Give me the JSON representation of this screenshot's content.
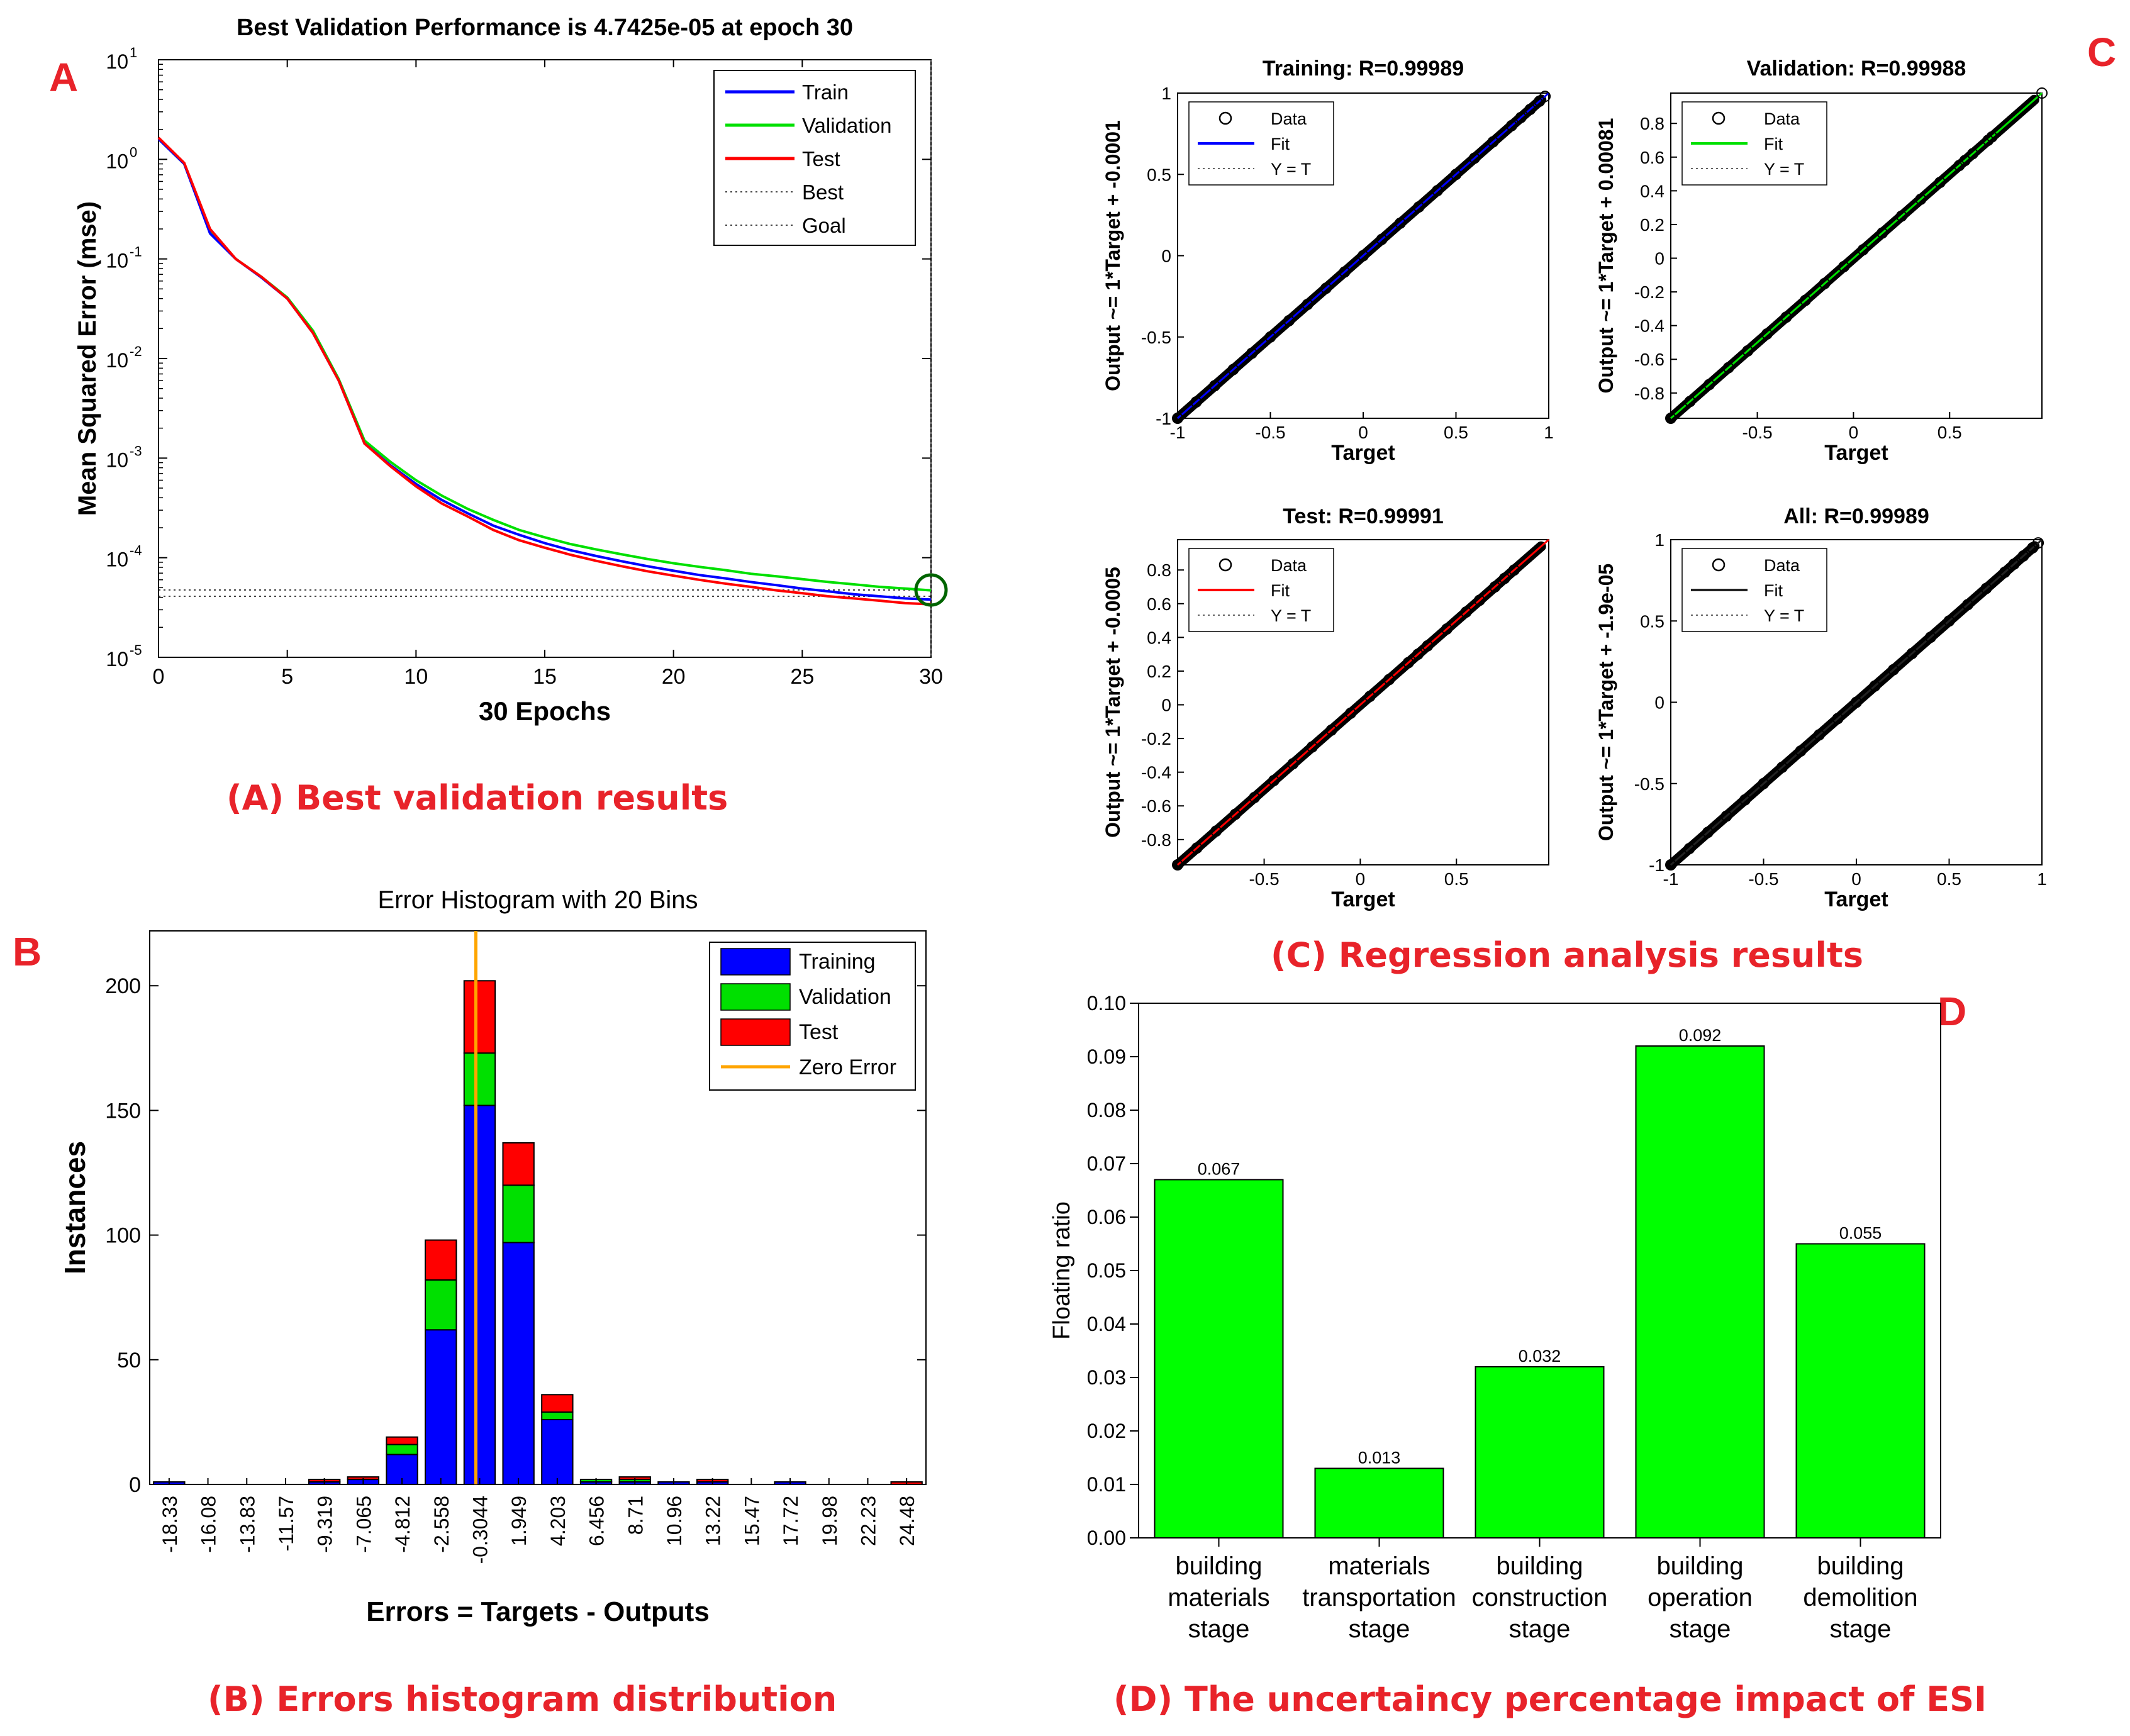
{
  "colors": {
    "train": "#0000ff",
    "validation": "#00e000",
    "test": "#ff0000",
    "zero_error": "#ffa500",
    "bar_green": "#00ff00",
    "caption_red": "#e8232a"
  },
  "panel_letters": {
    "a": "A",
    "b": "B",
    "c": "C",
    "d": "D"
  },
  "captions": {
    "a": "(A)  Best validation results",
    "b": "(B)  Errors histogram distribution",
    "c": "(C)  Regression analysis results",
    "d": "(D)  The uncertaincy percentage impact of ESI"
  },
  "chart_data": [
    {
      "id": "A",
      "type": "line",
      "title": "Best Validation Performance is 4.7425e-05 at epoch 30",
      "xlabel": "30 Epochs",
      "ylabel": "Mean Squared Error  (mse)",
      "yscale": "log",
      "xlim": [
        0,
        30
      ],
      "ylim_exp": [
        -5,
        1
      ],
      "xticks": [
        0,
        5,
        10,
        15,
        20,
        25,
        30
      ],
      "yticks_exp": [
        -5,
        -4,
        -3,
        -2,
        -1,
        0,
        1
      ],
      "x": [
        0,
        1,
        2,
        3,
        4,
        5,
        6,
        7,
        8,
        9,
        10,
        11,
        12,
        13,
        14,
        15,
        16,
        17,
        18,
        19,
        20,
        21,
        22,
        23,
        24,
        25,
        26,
        27,
        28,
        29,
        30
      ],
      "series": [
        {
          "name": "Train",
          "values": [
            1.6,
            0.9,
            0.18,
            0.1,
            0.065,
            0.04,
            0.018,
            0.006,
            0.0014,
            0.00085,
            0.00055,
            0.00038,
            0.00028,
            0.00021,
            0.00017,
            0.00014,
            0.000119,
            0.000104,
            9.2e-05,
            8.2e-05,
            7.4e-05,
            6.7e-05,
            6.2e-05,
            5.7e-05,
            5.3e-05,
            4.9e-05,
            4.6e-05,
            4.3e-05,
            4.1e-05,
            3.9e-05,
            3.8e-05
          ]
        },
        {
          "name": "Validation",
          "values": [
            1.6,
            0.9,
            0.19,
            0.1,
            0.066,
            0.041,
            0.019,
            0.0062,
            0.0015,
            0.00092,
            0.0006,
            0.00042,
            0.00031,
            0.00024,
            0.00019,
            0.00016,
            0.000137,
            0.000121,
            0.000108,
            9.7e-05,
            8.8e-05,
            8.1e-05,
            7.5e-05,
            6.9e-05,
            6.5e-05,
            6.1e-05,
            5.7e-05,
            5.4e-05,
            5.1e-05,
            4.9e-05,
            4.7e-05
          ]
        },
        {
          "name": "Test",
          "values": [
            1.65,
            0.92,
            0.2,
            0.1,
            0.066,
            0.04,
            0.018,
            0.006,
            0.0014,
            0.00083,
            0.00052,
            0.00035,
            0.00026,
            0.00019,
            0.00015,
            0.000126,
            0.000107,
            9.3e-05,
            8.2e-05,
            7.3e-05,
            6.6e-05,
            6e-05,
            5.5e-05,
            5.1e-05,
            4.7e-05,
            4.4e-05,
            4.1e-05,
            3.9e-05,
            3.7e-05,
            3.5e-05,
            3.4e-05
          ]
        }
      ],
      "best_level": 4.74e-05,
      "goal_level": 4.1e-05,
      "best_epoch": 30,
      "legend": [
        "Train",
        "Validation",
        "Test",
        "Best",
        "Goal"
      ]
    },
    {
      "id": "B",
      "type": "bar",
      "stacked": true,
      "title": "Error Histogram with 20 Bins",
      "xlabel": "Errors = Targets - Outputs",
      "ylabel": "Instances",
      "ylim": [
        0,
        222
      ],
      "yticks": [
        0,
        50,
        100,
        150,
        200
      ],
      "categories": [
        "-18.33",
        "-16.08",
        "-13.83",
        "-11.57",
        "-9.319",
        "-7.065",
        "-4.812",
        "-2.558",
        "-0.3044",
        "1.949",
        "4.203",
        "6.456",
        "8.71",
        "10.96",
        "13.22",
        "15.47",
        "17.72",
        "19.98",
        "22.23",
        "24.48"
      ],
      "series": [
        {
          "name": "Training",
          "values": [
            1,
            0,
            0,
            0,
            1,
            2,
            12,
            62,
            152,
            97,
            26,
            1,
            1,
            1,
            1,
            0,
            1,
            0,
            0,
            0
          ]
        },
        {
          "name": "Validation",
          "values": [
            0,
            0,
            0,
            0,
            0,
            0,
            4,
            20,
            21,
            23,
            3,
            1,
            1,
            0,
            0,
            0,
            0,
            0,
            0,
            0
          ]
        },
        {
          "name": "Test",
          "values": [
            0,
            0,
            0,
            0,
            1,
            1,
            3,
            16,
            29,
            17,
            7,
            0,
            1,
            0,
            1,
            0,
            0,
            0,
            0,
            1
          ]
        }
      ],
      "zero_error_bin": 8,
      "legend": [
        "Training",
        "Validation",
        "Test",
        "Zero Error"
      ]
    },
    {
      "id": "C1",
      "type": "scatter",
      "title": "Training: R=0.99989",
      "xlabel": "Target",
      "ylabel": "Output ~= 1*Target + -0.0001",
      "xlim": [
        -1,
        1
      ],
      "ylim": [
        -1,
        1
      ],
      "xticks": [
        -1,
        -0.5,
        0,
        0.5,
        1
      ],
      "yticks": [
        -1,
        -0.5,
        0,
        0.5,
        1
      ],
      "fit_color": "#0000ff",
      "x": [
        -1,
        -0.9,
        -0.8,
        -0.7,
        -0.6,
        -0.5,
        -0.4,
        -0.3,
        -0.2,
        -0.1,
        0,
        0.1,
        0.2,
        0.3,
        0.4,
        0.5,
        0.6,
        0.7,
        0.8,
        0.85,
        0.9,
        0.95,
        0.98
      ],
      "y": [
        -1,
        -0.9,
        -0.8,
        -0.7,
        -0.6,
        -0.5,
        -0.4,
        -0.3,
        -0.2,
        -0.1,
        0,
        0.1,
        0.2,
        0.3,
        0.4,
        0.5,
        0.6,
        0.7,
        0.8,
        0.85,
        0.9,
        0.95,
        0.98
      ],
      "legend": [
        "Data",
        "Fit",
        "Y = T"
      ]
    },
    {
      "id": "C2",
      "type": "scatter",
      "title": "Validation: R=0.99988",
      "xlabel": "Target",
      "ylabel": "Output ~= 1*Target + 0.00081",
      "xlim": [
        -0.95,
        0.98
      ],
      "ylim": [
        -0.95,
        0.98
      ],
      "xticks": [
        -0.5,
        0,
        0.5
      ],
      "yticks": [
        -0.8,
        -0.6,
        -0.4,
        -0.2,
        0,
        0.2,
        0.4,
        0.6,
        0.8
      ],
      "fit_color": "#00e000",
      "x": [
        -0.95,
        -0.85,
        -0.75,
        -0.65,
        -0.55,
        -0.45,
        -0.35,
        -0.25,
        -0.15,
        -0.05,
        0.05,
        0.15,
        0.25,
        0.35,
        0.45,
        0.55,
        0.58,
        0.62,
        0.7,
        0.72,
        0.98
      ],
      "y": [
        -0.95,
        -0.85,
        -0.75,
        -0.65,
        -0.55,
        -0.45,
        -0.35,
        -0.25,
        -0.15,
        -0.05,
        0.05,
        0.15,
        0.25,
        0.35,
        0.45,
        0.55,
        0.58,
        0.62,
        0.7,
        0.72,
        0.98
      ],
      "legend": [
        "Data",
        "Fit",
        "Y = T"
      ]
    },
    {
      "id": "C3",
      "type": "scatter",
      "title": "Test: R=0.99991",
      "xlabel": "Target",
      "ylabel": "Output ~= 1*Target + -0.0005",
      "xlim": [
        -0.95,
        0.98
      ],
      "ylim": [
        -0.95,
        0.98
      ],
      "xticks": [
        -0.5,
        0,
        0.5
      ],
      "yticks": [
        -0.8,
        -0.6,
        -0.4,
        -0.2,
        0,
        0.2,
        0.4,
        0.6,
        0.8
      ],
      "fit_color": "#ff0000",
      "x": [
        -0.95,
        -0.85,
        -0.75,
        -0.65,
        -0.55,
        -0.45,
        -0.35,
        -0.25,
        -0.15,
        -0.05,
        0.05,
        0.15,
        0.25,
        0.3,
        0.35,
        0.45,
        0.55,
        0.62,
        0.7,
        0.75,
        0.8
      ],
      "y": [
        -0.95,
        -0.85,
        -0.75,
        -0.65,
        -0.55,
        -0.45,
        -0.35,
        -0.25,
        -0.15,
        -0.05,
        0.05,
        0.15,
        0.25,
        0.3,
        0.35,
        0.45,
        0.55,
        0.62,
        0.7,
        0.75,
        0.8
      ],
      "legend": [
        "Data",
        "Fit",
        "Y = T"
      ]
    },
    {
      "id": "C4",
      "type": "scatter",
      "title": "All: R=0.99989",
      "xlabel": "Target",
      "ylabel": "Output ~= 1*Target + -1.9e-05",
      "xlim": [
        -1,
        1
      ],
      "ylim": [
        -1,
        1
      ],
      "xticks": [
        -1,
        -0.5,
        0,
        0.5,
        1
      ],
      "yticks": [
        -1,
        -0.5,
        0,
        0.5,
        1
      ],
      "fit_color": "#222222",
      "x": [
        -1,
        -0.9,
        -0.8,
        -0.7,
        -0.6,
        -0.5,
        -0.4,
        -0.3,
        -0.2,
        -0.1,
        0,
        0.1,
        0.2,
        0.3,
        0.4,
        0.5,
        0.6,
        0.7,
        0.8,
        0.85,
        0.9,
        0.95,
        0.98
      ],
      "y": [
        -1,
        -0.9,
        -0.8,
        -0.7,
        -0.6,
        -0.5,
        -0.4,
        -0.3,
        -0.2,
        -0.1,
        0,
        0.1,
        0.2,
        0.3,
        0.4,
        0.5,
        0.6,
        0.7,
        0.8,
        0.85,
        0.9,
        0.95,
        0.98
      ],
      "legend": [
        "Data",
        "Fit",
        "Y = T"
      ]
    },
    {
      "id": "D",
      "type": "bar",
      "title": "",
      "xlabel": "",
      "ylabel": "Floating ratio",
      "ylim": [
        0,
        0.1
      ],
      "yticks": [
        "0.00",
        "0.01",
        "0.02",
        "0.03",
        "0.04",
        "0.05",
        "0.06",
        "0.07",
        "0.08",
        "0.09",
        "0.10"
      ],
      "categories": [
        [
          "building",
          "materials",
          "stage"
        ],
        [
          "materials",
          "transportation",
          "stage"
        ],
        [
          "building",
          "construction",
          "stage"
        ],
        [
          "building",
          "operation",
          "stage"
        ],
        [
          "building",
          "demolition",
          "stage"
        ]
      ],
      "values": [
        0.067,
        0.013,
        0.032,
        0.092,
        0.055
      ],
      "value_labels": [
        "0.067",
        "0.013",
        "0.032",
        "0.092",
        "0.055"
      ]
    }
  ]
}
